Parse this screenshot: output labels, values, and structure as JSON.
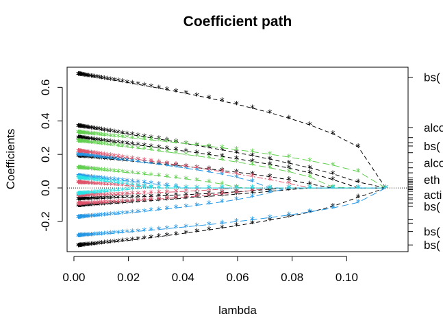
{
  "chart_data": {
    "type": "scatter",
    "title": "Coefficient path",
    "xlabel": "lambda",
    "ylabel": "Coefficients",
    "xlim": [
      -0.0025,
      0.1225
    ],
    "ylim": [
      -0.38,
      0.72
    ],
    "x_ticks": [
      "0.00",
      "0.02",
      "0.04",
      "0.06",
      "0.08",
      "0.10"
    ],
    "x_tick_values": [
      0,
      0.02,
      0.04,
      0.06,
      0.08,
      0.1
    ],
    "y_ticks": [
      "-0.2",
      "0.0",
      "0.2",
      "0.4",
      "0.6"
    ],
    "y_tick_values": [
      -0.2,
      0,
      0.2,
      0.4,
      0.6
    ],
    "grid": false,
    "zero_line": true,
    "right_labels": [
      {
        "text": "bs(",
        "y": 0.66
      },
      {
        "text": "alco",
        "y": 0.36
      },
      {
        "text": "bs(",
        "y": 0.25
      },
      {
        "text": "alco",
        "y": 0.15
      },
      {
        "text": "eth",
        "y": 0.05
      },
      {
        "text": "acti",
        "y": -0.04
      },
      {
        "text": "bs(",
        "y": -0.11
      },
      {
        "text": "bs(",
        "y": -0.26
      },
      {
        "text": "bs(",
        "y": -0.34
      }
    ],
    "right_ticks": [
      0.66,
      0.36,
      0.3,
      0.27,
      0.25,
      0.21,
      0.15,
      0.12,
      0.09,
      0.06,
      0.05,
      0.04,
      0.03,
      0.02,
      0.01,
      0.0,
      -0.01,
      -0.02,
      -0.04,
      -0.06,
      -0.07,
      -0.09,
      -0.11,
      -0.19,
      -0.21,
      -0.26,
      -0.34
    ],
    "lambda_grid": [
      0.1143,
      0.1042,
      0.0949,
      0.0865,
      0.0788,
      0.0718,
      0.0654,
      0.0596,
      0.0543,
      0.0495,
      0.0451,
      0.0411,
      0.0374,
      0.0341,
      0.0311,
      0.0283,
      0.0258,
      0.0235,
      0.0214,
      0.0195,
      0.0178,
      0.0162,
      0.0148,
      0.0135,
      0.0123,
      0.0112,
      0.0102,
      0.0093,
      0.0085,
      0.0077,
      0.007,
      0.0064,
      0.0058,
      0.0053,
      0.0048,
      0.0044,
      0.004,
      0.0037,
      0.0033,
      0.003,
      0.0028,
      0.0025,
      0.0023,
      0.0021,
      0.0019,
      0.0017,
      0.0016
    ],
    "series": [
      {
        "color": "#000000",
        "lty": "dash",
        "end": 0.68,
        "lam0": 0.1143,
        "p": 0.42
      },
      {
        "color": "#000000",
        "lty": "dash",
        "end": 0.37,
        "lam0": 0.108,
        "p": 0.7
      },
      {
        "color": "#000000",
        "lty": "dash",
        "end": 0.3,
        "lam0": 0.1,
        "p": 0.6
      },
      {
        "color": "#000000",
        "lty": "dash",
        "end": 0.19,
        "lam0": 0.09,
        "p": 0.65
      },
      {
        "color": "#000000",
        "lty": "dash",
        "end": -0.07,
        "lam0": 0.075,
        "p": 0.7
      },
      {
        "color": "#000000",
        "lty": "dash",
        "end": -0.35,
        "lam0": 0.108,
        "p": 0.55
      },
      {
        "color": "#000000",
        "lty": "dash",
        "end": -0.11,
        "lam0": 0.085,
        "p": 0.9
      },
      {
        "color": "#61D04F",
        "lty": "longdash",
        "end": 0.33,
        "lam0": 0.1143,
        "p": 0.5
      },
      {
        "color": "#61D04F",
        "lty": "longdash",
        "end": 0.28,
        "lam0": 0.095,
        "p": 0.6
      },
      {
        "color": "#61D04F",
        "lty": "longdash",
        "end": 0.12,
        "lam0": 0.06,
        "p": 0.7
      },
      {
        "color": "#2297E6",
        "lty": "longdash",
        "end": -0.29,
        "lam0": 0.1143,
        "p": 0.5
      },
      {
        "color": "#2297E6",
        "lty": "longdash",
        "end": -0.18,
        "lam0": 0.075,
        "p": 0.6
      },
      {
        "color": "#2297E6",
        "lty": "longdash",
        "end": 0.2,
        "lam0": 0.07,
        "p": 0.6
      },
      {
        "color": "#2297E6",
        "lty": "longdash",
        "end": 0.07,
        "lam0": 0.04,
        "p": 0.8
      },
      {
        "color": "#DF536B",
        "lty": "dotdash",
        "end": 0.22,
        "lam0": 0.085,
        "p": 0.8
      },
      {
        "color": "#DF536B",
        "lty": "dotdash",
        "end": -0.1,
        "lam0": 0.07,
        "p": 0.7
      },
      {
        "color": "#DF536B",
        "lty": "dotdash",
        "end": -0.05,
        "lam0": 0.06,
        "p": 0.8
      },
      {
        "color": "#DF536B",
        "lty": "dotdash",
        "end": 0.03,
        "lam0": 0.03,
        "p": 0.8
      },
      {
        "color": "#28E2E5",
        "lty": "dotdash",
        "end": 0.06,
        "lam0": 0.03,
        "p": 0.9
      },
      {
        "color": "#28E2E5",
        "lty": "dotdash",
        "end": -0.04,
        "lam0": 0.025,
        "p": 0.9
      }
    ]
  }
}
